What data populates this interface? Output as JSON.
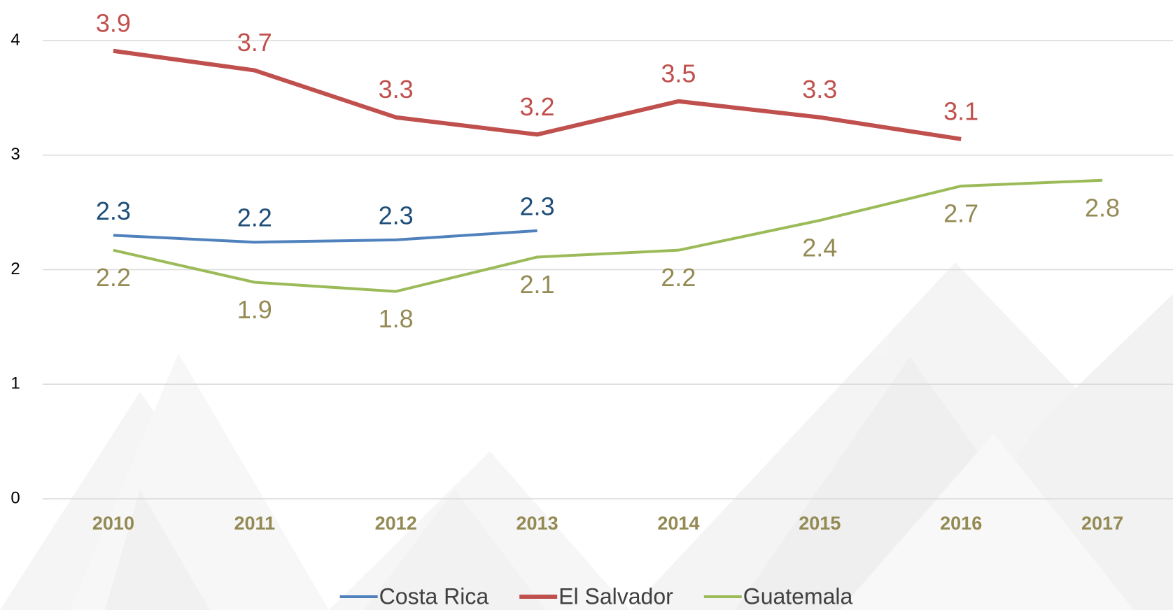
{
  "chart_data": {
    "type": "line",
    "categories": [
      "2010",
      "2011",
      "2012",
      "2013",
      "2014",
      "2015",
      "2016",
      "2017"
    ],
    "series": [
      {
        "name": "Costa Rica",
        "color": "#4f81bd",
        "label_color": "#1f4e79",
        "values": [
          2.3,
          2.24,
          2.26,
          2.34,
          null,
          null,
          null,
          null
        ],
        "value_labels": [
          "2.3",
          "2.2",
          "2.3",
          "2.3",
          null,
          null,
          null,
          null
        ]
      },
      {
        "name": "El Salvador",
        "color": "#c0504d",
        "label_color": "#c0504d",
        "values": [
          3.91,
          3.74,
          3.33,
          3.18,
          3.47,
          3.33,
          3.14,
          null
        ],
        "value_labels": [
          "3.9",
          "3.7",
          "3.3",
          "3.2",
          "3.5",
          "3.3",
          "3.1",
          null
        ]
      },
      {
        "name": "Guatemala",
        "color": "#9bbb59",
        "label_color": "#948a54",
        "values": [
          2.17,
          1.89,
          1.81,
          2.11,
          2.17,
          2.43,
          2.73,
          2.78
        ],
        "value_labels": [
          "2.2",
          "1.9",
          "1.8",
          "2.1",
          "2.2",
          "2.4",
          "2.7",
          "2.8"
        ]
      }
    ],
    "ylim": [
      0,
      4
    ],
    "yticks": [
      0,
      1,
      2,
      3,
      4
    ],
    "grid": true,
    "legend": "bottom"
  }
}
